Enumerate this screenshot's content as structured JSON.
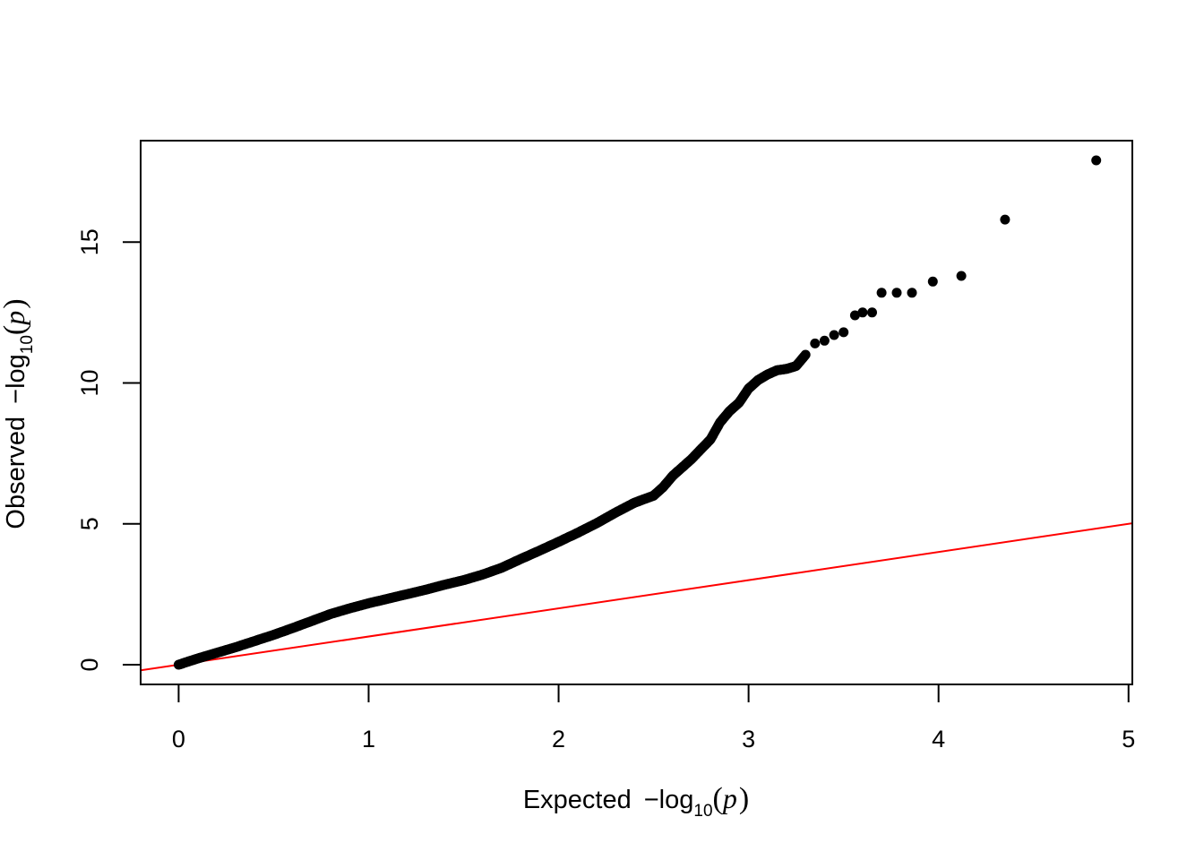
{
  "chart_data": {
    "type": "scatter",
    "title": "",
    "xlabel": {
      "prefix": "Expected",
      "minus": "−",
      "fn": "log",
      "sub": "10",
      "open": "(",
      "var": "p",
      "close": ")"
    },
    "ylabel": {
      "prefix": "Observed",
      "minus": "−",
      "fn": "log",
      "sub": "10",
      "open": "(",
      "var": "p",
      "close": ")"
    },
    "xlim": [
      -0.2,
      5.02
    ],
    "ylim": [
      -0.7,
      18.6
    ],
    "xticks": [
      0,
      1,
      2,
      3,
      4,
      5
    ],
    "xtick_labels": [
      "0",
      "1",
      "2",
      "3",
      "4",
      "5"
    ],
    "yticks": [
      0,
      5,
      10,
      15
    ],
    "ytick_labels": [
      "0",
      "5",
      "10",
      "15"
    ],
    "grid": false,
    "legend": "none",
    "reference_line": {
      "slope": 1,
      "intercept": 0,
      "color": "#ff0000"
    },
    "point_color": "#000000",
    "curve": {
      "x": [
        0,
        0.1,
        0.2,
        0.3,
        0.4,
        0.5,
        0.6,
        0.7,
        0.8,
        0.9,
        1.0,
        1.1,
        1.2,
        1.3,
        1.4,
        1.5,
        1.6,
        1.7,
        1.8,
        1.9,
        2.0,
        2.1,
        2.2,
        2.3,
        2.4,
        2.5,
        2.55,
        2.6,
        2.7,
        2.8,
        2.85,
        2.9,
        2.95,
        3.0,
        3.05,
        3.1,
        3.15,
        3.2,
        3.25,
        3.3
      ],
      "y": [
        0.0,
        0.22,
        0.42,
        0.62,
        0.84,
        1.06,
        1.3,
        1.55,
        1.8,
        2.0,
        2.18,
        2.34,
        2.5,
        2.66,
        2.84,
        3.0,
        3.2,
        3.44,
        3.75,
        4.05,
        4.36,
        4.68,
        5.02,
        5.4,
        5.75,
        6.0,
        6.3,
        6.7,
        7.3,
        8.0,
        8.6,
        9.0,
        9.3,
        9.8,
        10.1,
        10.3,
        10.45,
        10.5,
        10.6,
        11.0
      ]
    },
    "outliers": {
      "x": [
        3.35,
        3.4,
        3.45,
        3.5,
        3.56,
        3.6,
        3.65,
        3.7,
        3.78,
        3.86,
        3.97,
        4.12,
        4.35,
        4.83
      ],
      "y": [
        11.4,
        11.5,
        11.7,
        11.8,
        12.4,
        12.5,
        12.5,
        13.2,
        13.2,
        13.2,
        13.6,
        13.8,
        15.8,
        17.9
      ]
    }
  }
}
